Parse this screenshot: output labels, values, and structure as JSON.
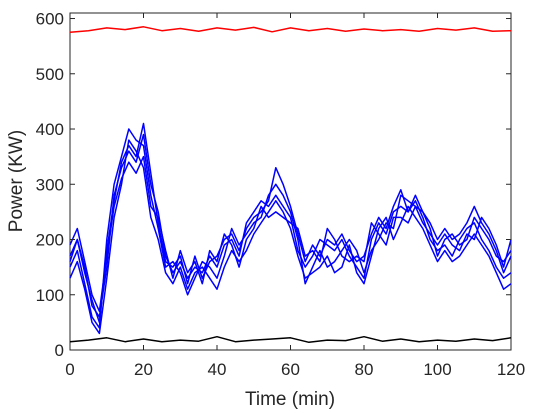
{
  "chart_data": {
    "type": "line",
    "title": "",
    "xlabel": "Time (min)",
    "ylabel": "Power (KW)",
    "xlim": [
      0,
      120
    ],
    "ylim": [
      0,
      610
    ],
    "xticks": [
      0,
      20,
      40,
      60,
      80,
      100,
      120
    ],
    "yticks": [
      0,
      100,
      200,
      300,
      400,
      500,
      600
    ],
    "grid": false,
    "legend": "none",
    "colors": {
      "upper": "#ff0000",
      "traces": "#0000ff",
      "lower": "#000000",
      "axes": "#262626"
    },
    "series": [
      {
        "color": "#ff0000",
        "x": [
          0,
          5,
          10,
          15,
          20,
          25,
          30,
          35,
          40,
          45,
          50,
          55,
          60,
          65,
          70,
          75,
          80,
          85,
          90,
          95,
          100,
          105,
          110,
          115,
          120
        ],
        "y": [
          575,
          578,
          583,
          580,
          585,
          578,
          582,
          577,
          583,
          579,
          584,
          576,
          583,
          578,
          582,
          577,
          581,
          578,
          580,
          577,
          582,
          579,
          583,
          577,
          578
        ]
      },
      {
        "color": "#0000ff",
        "x": [
          0,
          2,
          4,
          6,
          8,
          10,
          12,
          14,
          16,
          18,
          20,
          22,
          24,
          26,
          28,
          30,
          32,
          34,
          36,
          38,
          40,
          42,
          44,
          46,
          48,
          50,
          52,
          54,
          56,
          58,
          60,
          62,
          64,
          66,
          68,
          70,
          72,
          74,
          76,
          78,
          80,
          82,
          84,
          86,
          88,
          90,
          92,
          94,
          96,
          98,
          100,
          102,
          104,
          106,
          108,
          110,
          112,
          114,
          116,
          118,
          120
        ],
        "y": [
          170,
          200,
          150,
          80,
          60,
          150,
          280,
          330,
          360,
          340,
          390,
          300,
          250,
          170,
          140,
          160,
          130,
          150,
          140,
          170,
          150,
          190,
          200,
          170,
          230,
          250,
          270,
          260,
          280,
          260,
          240,
          180,
          150,
          170,
          200,
          190,
          180,
          200,
          170,
          150,
          130,
          200,
          230,
          210,
          250,
          260,
          250,
          270,
          240,
          200,
          180,
          190,
          170,
          200,
          220,
          230,
          200,
          180,
          150,
          130,
          140
        ]
      },
      {
        "color": "#0000ff",
        "x": [
          0,
          2,
          4,
          6,
          8,
          10,
          12,
          14,
          16,
          18,
          20,
          22,
          24,
          26,
          28,
          30,
          32,
          34,
          36,
          38,
          40,
          42,
          44,
          46,
          48,
          50,
          52,
          54,
          56,
          58,
          60,
          62,
          64,
          66,
          68,
          70,
          72,
          74,
          76,
          78,
          80,
          82,
          84,
          86,
          88,
          90,
          92,
          94,
          96,
          98,
          100,
          102,
          104,
          106,
          108,
          110,
          112,
          114,
          116,
          118,
          120
        ],
        "y": [
          150,
          180,
          120,
          60,
          40,
          200,
          300,
          350,
          400,
          380,
          370,
          280,
          220,
          150,
          160,
          140,
          100,
          130,
          160,
          150,
          130,
          170,
          220,
          190,
          210,
          230,
          240,
          280,
          300,
          280,
          250,
          200,
          120,
          150,
          180,
          150,
          160,
          180,
          200,
          180,
          140,
          180,
          200,
          230,
          220,
          280,
          270,
          260,
          250,
          220,
          170,
          200,
          210,
          190,
          200,
          240,
          220,
          200,
          170,
          160,
          180
        ]
      },
      {
        "color": "#0000ff",
        "x": [
          0,
          2,
          4,
          6,
          8,
          10,
          12,
          14,
          16,
          18,
          20,
          22,
          24,
          26,
          28,
          30,
          32,
          34,
          36,
          38,
          40,
          42,
          44,
          46,
          48,
          50,
          52,
          54,
          56,
          58,
          60,
          62,
          64,
          66,
          68,
          70,
          72,
          74,
          76,
          78,
          80,
          82,
          84,
          86,
          88,
          90,
          92,
          94,
          96,
          98,
          100,
          102,
          104,
          106,
          108,
          110,
          112,
          114,
          116,
          118,
          120
        ],
        "y": [
          190,
          220,
          160,
          100,
          70,
          170,
          260,
          310,
          340,
          320,
          350,
          260,
          240,
          180,
          130,
          180,
          140,
          160,
          120,
          180,
          160,
          210,
          190,
          150,
          200,
          220,
          260,
          240,
          250,
          240,
          230,
          220,
          170,
          180,
          160,
          220,
          200,
          170,
          160,
          170,
          160,
          230,
          210,
          190,
          240,
          240,
          230,
          260,
          230,
          210,
          190,
          210,
          190,
          180,
          210,
          200,
          240,
          220,
          190,
          150,
          200
        ]
      },
      {
        "color": "#0000ff",
        "x": [
          0,
          2,
          4,
          6,
          8,
          10,
          12,
          14,
          16,
          18,
          20,
          22,
          24,
          26,
          28,
          30,
          32,
          34,
          36,
          38,
          40,
          42,
          44,
          46,
          48,
          50,
          52,
          54,
          56,
          58,
          60,
          62,
          64,
          66,
          68,
          70,
          72,
          74,
          76,
          78,
          80,
          82,
          84,
          86,
          88,
          90,
          92,
          94,
          96,
          98,
          100,
          102,
          104,
          106,
          108,
          110,
          112,
          114,
          116,
          118,
          120
        ],
        "y": [
          130,
          160,
          110,
          50,
          30,
          130,
          240,
          300,
          380,
          360,
          330,
          240,
          200,
          140,
          120,
          150,
          110,
          140,
          150,
          130,
          110,
          150,
          180,
          160,
          180,
          210,
          230,
          250,
          270,
          250,
          220,
          170,
          130,
          140,
          150,
          170,
          140,
          150,
          190,
          140,
          120,
          170,
          220,
          240,
          200,
          230,
          260,
          240,
          220,
          190,
          160,
          180,
          160,
          170,
          190,
          210,
          190,
          170,
          140,
          110,
          120
        ]
      },
      {
        "color": "#0000ff",
        "x": [
          0,
          2,
          4,
          6,
          8,
          10,
          12,
          14,
          16,
          18,
          20,
          22,
          24,
          26,
          28,
          30,
          32,
          34,
          36,
          38,
          40,
          42,
          44,
          46,
          48,
          50,
          52,
          54,
          56,
          58,
          60,
          62,
          64,
          66,
          68,
          70,
          72,
          74,
          76,
          78,
          80,
          82,
          84,
          86,
          88,
          90,
          92,
          94,
          96,
          98,
          100,
          102,
          104,
          106,
          108,
          110,
          112,
          114,
          116,
          118,
          120
        ],
        "y": [
          160,
          200,
          140,
          90,
          50,
          180,
          270,
          340,
          370,
          350,
          410,
          320,
          230,
          160,
          150,
          170,
          120,
          170,
          130,
          160,
          170,
          200,
          210,
          180,
          220,
          240,
          250,
          270,
          330,
          300,
          260,
          210,
          160,
          190,
          170,
          200,
          190,
          210,
          180,
          160,
          170,
          210,
          240,
          220,
          260,
          290,
          250,
          280,
          250,
          230,
          200,
          220,
          200,
          210,
          230,
          260,
          230,
          210,
          180,
          140,
          170
        ]
      },
      {
        "color": "#000000",
        "x": [
          0,
          5,
          10,
          15,
          20,
          25,
          30,
          35,
          40,
          45,
          50,
          55,
          60,
          65,
          70,
          75,
          80,
          85,
          90,
          95,
          100,
          105,
          110,
          115,
          120
        ],
        "y": [
          15,
          18,
          22,
          15,
          20,
          15,
          18,
          16,
          24,
          15,
          18,
          20,
          22,
          14,
          18,
          17,
          24,
          16,
          20,
          15,
          18,
          16,
          20,
          17,
          22
        ]
      }
    ]
  }
}
